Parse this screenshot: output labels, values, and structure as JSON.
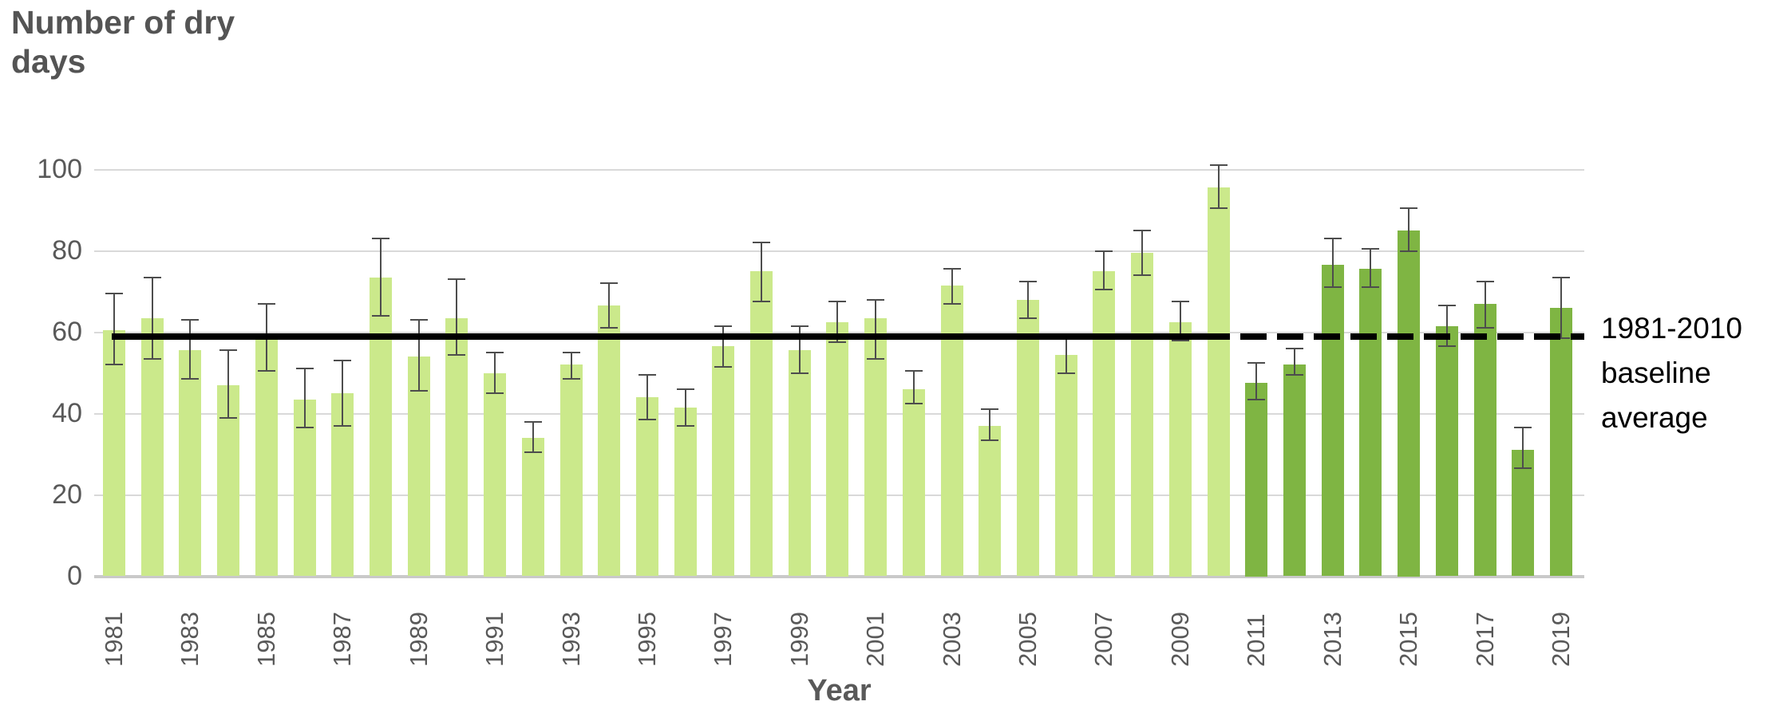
{
  "title": "Number of dry days",
  "x_axis_title": "Year",
  "annotation_text": "1981-2010 baseline average",
  "colors": {
    "bar_light_green": "#cbe98b",
    "bar_dark_green": "#7fb543",
    "baseline_black": "#000000",
    "gridline_gray": "#d9d9d9",
    "axis_gray": "#c9c9c9",
    "errorbar_gray": "#4d4d4d",
    "label_gray": "#595959",
    "title_gray": "#545454"
  },
  "chart_data": {
    "type": "bar",
    "title": "Number of dry days",
    "xlabel": "Year",
    "ylabel": "Number of dry days",
    "ylim": [
      0,
      100
    ],
    "yticks": [
      0,
      20,
      40,
      60,
      80,
      100
    ],
    "grid": "horizontal",
    "x_tick_labels_shown": "odd years only, rotated 90 degrees",
    "categories": [
      1981,
      1982,
      1983,
      1984,
      1985,
      1986,
      1987,
      1988,
      1989,
      1990,
      1991,
      1992,
      1993,
      1994,
      1995,
      1996,
      1997,
      1998,
      1999,
      2000,
      2001,
      2002,
      2003,
      2004,
      2005,
      2006,
      2007,
      2008,
      2009,
      2010,
      2011,
      2012,
      2013,
      2014,
      2015,
      2016,
      2017,
      2018,
      2019
    ],
    "series": [
      {
        "name": "Number of dry days",
        "values": [
          60.5,
          63.5,
          55.5,
          47,
          58.5,
          43.5,
          45,
          73.5,
          54,
          63.5,
          50,
          34,
          52,
          66.5,
          44,
          41.5,
          56.5,
          75,
          55.5,
          62.5,
          63.5,
          46,
          71.5,
          37,
          68,
          54.5,
          75,
          79.5,
          62.5,
          95.5,
          47.5,
          52,
          76.5,
          75.5,
          85,
          61.5,
          67,
          31,
          66
        ]
      }
    ],
    "error_low": [
      52,
      53.5,
      48.5,
      39,
      50.5,
      36.5,
      37,
      64,
      45.5,
      54.5,
      45,
      30.5,
      48.5,
      61,
      38.5,
      37,
      51.5,
      67.5,
      50,
      57.5,
      53.5,
      42.5,
      67,
      33.5,
      63.5,
      50,
      70.5,
      74,
      58,
      90.5,
      43.5,
      49.5,
      71,
      71,
      80,
      56.5,
      61,
      26.5,
      58.5
    ],
    "error_high": [
      69.5,
      73.5,
      63,
      55.5,
      67,
      51,
      53,
      83,
      63,
      73,
      55,
      38,
      55,
      72,
      49.5,
      46,
      61.5,
      82,
      61.5,
      67.5,
      68,
      50.5,
      75.5,
      41,
      72.5,
      58.5,
      80,
      85,
      67.5,
      101,
      52.5,
      56,
      83,
      80.5,
      90.5,
      66.5,
      72.5,
      36.5,
      73.5
    ],
    "baseline": {
      "value": 59,
      "label": "1981-2010 baseline average",
      "style": "solid over 1981-2010, dashed over 2011-2019"
    },
    "color_groups": {
      "light_green_years": [
        1981,
        2010
      ],
      "dark_green_years": [
        2011,
        2019
      ]
    },
    "legend_position": "none"
  }
}
